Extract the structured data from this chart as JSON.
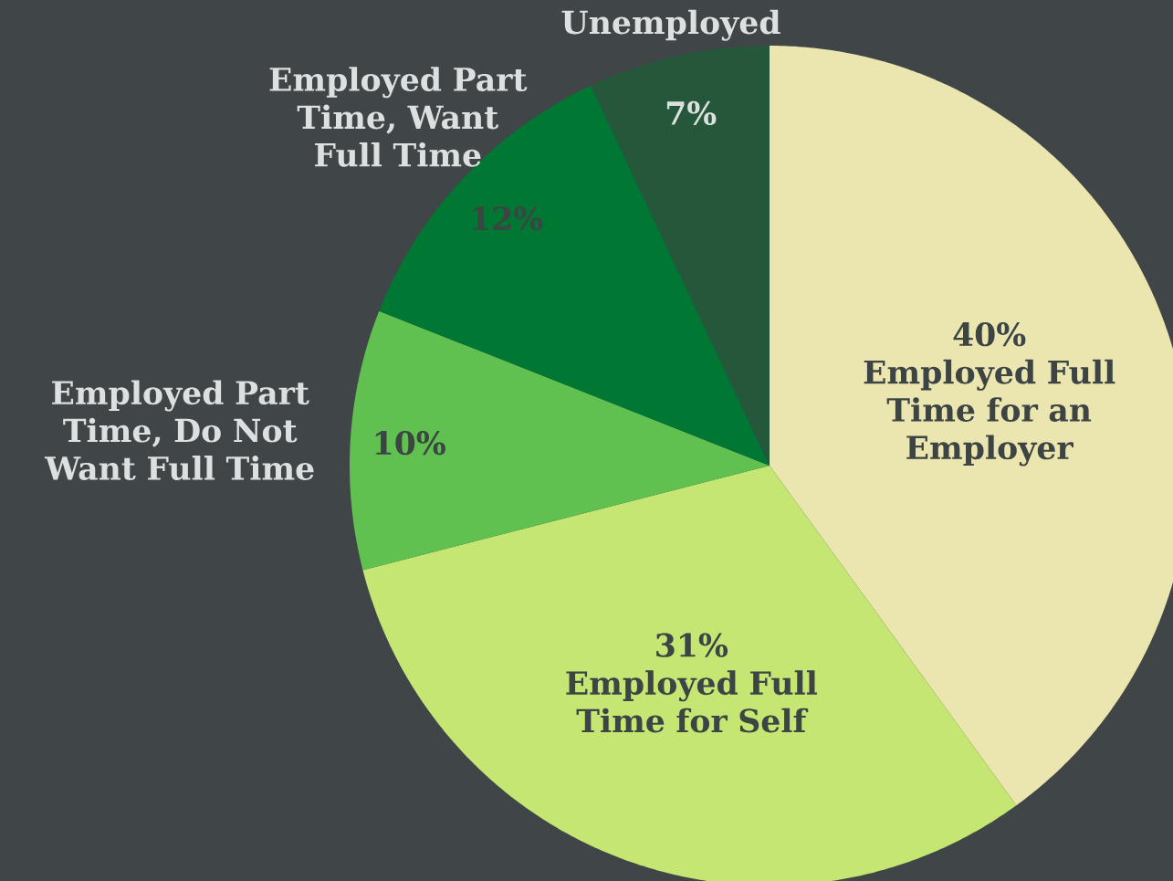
{
  "chart_data": {
    "type": "pie",
    "categories": [
      "Employed Full Time for an Employer",
      "Employed Full Time for Self",
      "Employed Part Time, Do Not Want Full Time",
      "Employed Part Time, Want Full Time",
      "Unemployed"
    ],
    "values": [
      40,
      31,
      10,
      12,
      7
    ],
    "value_labels": [
      "40%",
      "31%",
      "10%",
      "12%",
      "7%"
    ],
    "colors": [
      "#ebe5b0",
      "#c5e673",
      "#60c050",
      "#007733",
      "#25573a"
    ]
  }
}
